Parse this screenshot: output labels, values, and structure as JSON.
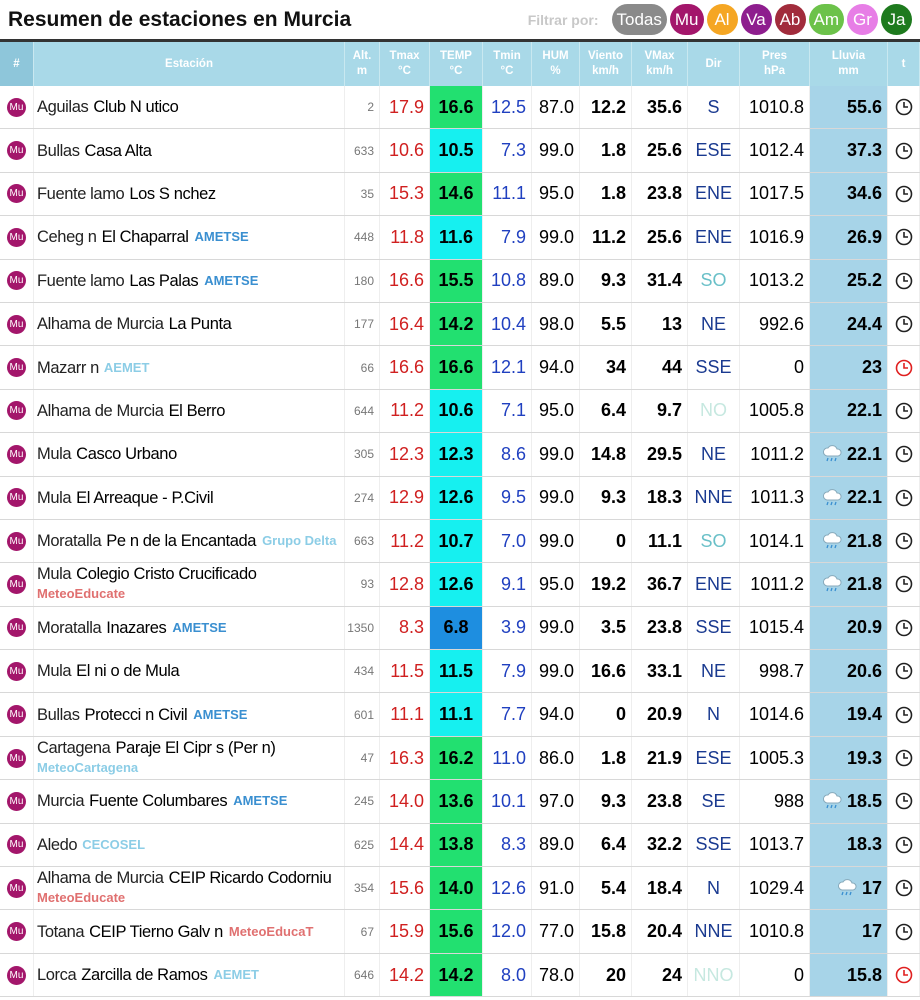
{
  "header": {
    "title": "Resumen de estaciones en Murcia",
    "filter_label": "Filtrar por:",
    "filters": [
      {
        "label": "Todas",
        "color": "#8a8a8a"
      },
      {
        "label": "Mu",
        "color": "#a3166b"
      },
      {
        "label": "Al",
        "color": "#f5a623"
      },
      {
        "label": "Va",
        "color": "#8e1e8e"
      },
      {
        "label": "Ab",
        "color": "#a12c3c"
      },
      {
        "label": "Am",
        "color": "#6cc24a"
      },
      {
        "label": "Gr",
        "color": "#e77ee6"
      },
      {
        "label": "Ja",
        "color": "#1e7a1e"
      }
    ]
  },
  "table": {
    "columns": [
      {
        "label": "#"
      },
      {
        "label": "Estación"
      },
      {
        "label": "Alt.",
        "unit": "m"
      },
      {
        "label": "Tmax",
        "unit": "°C"
      },
      {
        "label": "TEMP",
        "unit": "°C"
      },
      {
        "label": "Tmin",
        "unit": "°C"
      },
      {
        "label": "HUM",
        "unit": "%"
      },
      {
        "label": "Viento",
        "unit": "km/h"
      },
      {
        "label": "VMax",
        "unit": "km/h"
      },
      {
        "label": "Dir"
      },
      {
        "label": "Pres",
        "unit": "hPa"
      },
      {
        "label": "Lluvia",
        "unit": "mm"
      },
      {
        "label": "t"
      }
    ],
    "rows": [
      {
        "region": "Mu",
        "town": "Aguilas",
        "station": "Club N utico",
        "alt": "2",
        "tmax": "17.9",
        "temp": "16.6",
        "temp_color": "#22e070",
        "tmin": "12.5",
        "hum": "87.0",
        "wind": "12.2",
        "vmax": "35.6",
        "dir": "S",
        "pres": "1010.8",
        "rain": "55.6"
      },
      {
        "region": "Mu",
        "town": "Bullas",
        "station": "Casa Alta",
        "alt": "633",
        "tmax": "10.6",
        "temp": "10.5",
        "temp_color": "#16f0f0",
        "tmin": "7.3",
        "hum": "99.0",
        "wind": "1.8",
        "vmax": "25.6",
        "dir": "ESE",
        "pres": "1012.4",
        "rain": "37.3"
      },
      {
        "region": "Mu",
        "town": "Fuente lamo",
        "station": "Los S nchez",
        "alt": "35",
        "tmax": "15.3",
        "temp": "14.6",
        "temp_color": "#22e070",
        "tmin": "11.1",
        "hum": "95.0",
        "wind": "1.8",
        "vmax": "23.8",
        "dir": "ENE",
        "pres": "1017.5",
        "rain": "34.6"
      },
      {
        "region": "Mu",
        "town": "Ceheg n",
        "station": "El Chaparral",
        "source": {
          "name": "AMETSE",
          "color": "#3a8fd0"
        },
        "alt": "448",
        "tmax": "11.8",
        "temp": "11.6",
        "temp_color": "#16f0f0",
        "tmin": "7.9",
        "hum": "99.0",
        "wind": "11.2",
        "vmax": "25.6",
        "dir": "ENE",
        "pres": "1016.9",
        "rain": "26.9"
      },
      {
        "region": "Mu",
        "town": "Fuente lamo",
        "station": "Las Palas",
        "source": {
          "name": "AMETSE",
          "color": "#3a8fd0"
        },
        "alt": "180",
        "tmax": "16.6",
        "temp": "15.5",
        "temp_color": "#22e070",
        "tmin": "10.8",
        "hum": "89.0",
        "wind": "9.3",
        "vmax": "31.4",
        "dir": "SO",
        "dir_color": "#6ac0c8",
        "pres": "1013.2",
        "rain": "25.2"
      },
      {
        "region": "Mu",
        "town": "Alhama de Murcia",
        "station": "La Punta",
        "alt": "177",
        "tmax": "16.4",
        "temp": "14.2",
        "temp_color": "#22e070",
        "tmin": "10.4",
        "hum": "98.0",
        "wind": "5.5",
        "vmax": "13",
        "dir": "NE",
        "pres": "992.6",
        "rain": "24.4"
      },
      {
        "region": "Mu",
        "town": "Mazarr n",
        "source": {
          "name": "AEMET",
          "color": "#8ccde6"
        },
        "alt": "66",
        "tmax": "16.6",
        "temp": "16.6",
        "temp_color": "#22e070",
        "tmin": "12.1",
        "hum": "94.0",
        "wind": "34",
        "vmax": "44",
        "dir": "SSE",
        "pres": "0",
        "rain": "23",
        "stale": true
      },
      {
        "region": "Mu",
        "town": "Alhama de Murcia",
        "station": "El Berro",
        "alt": "644",
        "tmax": "11.2",
        "temp": "10.6",
        "temp_color": "#16f0f0",
        "tmin": "7.1",
        "hum": "95.0",
        "wind": "6.4",
        "vmax": "9.7",
        "dir": "NO",
        "dir_color": "#c6e8e0",
        "pres": "1005.8",
        "rain": "22.1"
      },
      {
        "region": "Mu",
        "town": "Mula",
        "station": "Casco Urbano",
        "alt": "305",
        "tmax": "12.3",
        "temp": "12.3",
        "temp_color": "#16f0f0",
        "tmin": "8.6",
        "hum": "99.0",
        "wind": "14.8",
        "vmax": "29.5",
        "dir": "NE",
        "pres": "1011.2",
        "rain": "22.1",
        "raining": true
      },
      {
        "region": "Mu",
        "town": "Mula",
        "station": "El Arreaque - P.Civil",
        "alt": "274",
        "tmax": "12.9",
        "temp": "12.6",
        "temp_color": "#16f0f0",
        "tmin": "9.5",
        "hum": "99.0",
        "wind": "9.3",
        "vmax": "18.3",
        "dir": "NNE",
        "pres": "1011.3",
        "rain": "22.1",
        "raining": true
      },
      {
        "region": "Mu",
        "town": "Moratalla",
        "station": "Pe n de la Encantada",
        "source": {
          "name": "Grupo Delta",
          "color": "#8ccde6"
        },
        "alt": "663",
        "tmax": "11.2",
        "temp": "10.7",
        "temp_color": "#16f0f0",
        "tmin": "7.0",
        "hum": "99.0",
        "wind": "0",
        "vmax": "11.1",
        "dir": "SO",
        "dir_color": "#6ac0c8",
        "pres": "1014.1",
        "rain": "21.8",
        "raining": true
      },
      {
        "region": "Mu",
        "town": "Mula",
        "station": "Colegio Cristo Crucificado",
        "source": {
          "name": "MeteoEducate",
          "color": "#e07070"
        },
        "alt": "93",
        "tmax": "12.8",
        "temp": "12.6",
        "temp_color": "#16f0f0",
        "tmin": "9.1",
        "hum": "95.0",
        "wind": "19.2",
        "vmax": "36.7",
        "dir": "ENE",
        "pres": "1011.2",
        "rain": "21.8",
        "raining": true
      },
      {
        "region": "Mu",
        "town": "Moratalla",
        "station": "Inazares",
        "source": {
          "name": "AMETSE",
          "color": "#3a8fd0"
        },
        "alt": "1350",
        "tmax": "8.3",
        "temp": "6.8",
        "temp_color": "#1e8ee0",
        "tmin": "3.9",
        "hum": "99.0",
        "wind": "3.5",
        "vmax": "23.8",
        "dir": "SSE",
        "pres": "1015.4",
        "rain": "20.9"
      },
      {
        "region": "Mu",
        "town": "Mula",
        "station": "El ni o de Mula",
        "alt": "434",
        "tmax": "11.5",
        "temp": "11.5",
        "temp_color": "#16f0f0",
        "tmin": "7.9",
        "hum": "99.0",
        "wind": "16.6",
        "vmax": "33.1",
        "dir": "NE",
        "pres": "998.7",
        "rain": "20.6"
      },
      {
        "region": "Mu",
        "town": "Bullas",
        "station": "Protecci n Civil",
        "source": {
          "name": "AMETSE",
          "color": "#3a8fd0"
        },
        "alt": "601",
        "tmax": "11.1",
        "temp": "11.1",
        "temp_color": "#16f0f0",
        "tmin": "7.7",
        "hum": "94.0",
        "wind": "0",
        "vmax": "20.9",
        "dir": "N",
        "pres": "1014.6",
        "rain": "19.4"
      },
      {
        "region": "Mu",
        "town": "Cartagena",
        "station": "Paraje El Cipr s (Per n)",
        "source": {
          "name": "MeteoCartagena",
          "color": "#8ccde6"
        },
        "alt": "47",
        "tmax": "16.3",
        "temp": "16.2",
        "temp_color": "#22e070",
        "tmin": "11.0",
        "hum": "86.0",
        "wind": "1.8",
        "vmax": "21.9",
        "dir": "ESE",
        "pres": "1005.3",
        "rain": "19.3"
      },
      {
        "region": "Mu",
        "town": "Murcia",
        "station": "Fuente Columbares",
        "source": {
          "name": "AMETSE",
          "color": "#3a8fd0"
        },
        "alt": "245",
        "tmax": "14.0",
        "temp": "13.6",
        "temp_color": "#22e070",
        "tmin": "10.1",
        "hum": "97.0",
        "wind": "9.3",
        "vmax": "23.8",
        "dir": "SE",
        "pres": "988",
        "rain": "18.5",
        "raining": true
      },
      {
        "region": "Mu",
        "town": "Aledo",
        "source": {
          "name": "CECOSEL",
          "color": "#8ccde6"
        },
        "alt": "625",
        "tmax": "14.4",
        "temp": "13.8",
        "temp_color": "#22e070",
        "tmin": "8.3",
        "hum": "89.0",
        "wind": "6.4",
        "vmax": "32.2",
        "dir": "SSE",
        "pres": "1013.7",
        "rain": "18.3"
      },
      {
        "region": "Mu",
        "town": "Alhama de Murcia",
        "station": "CEIP Ricardo Codorniu",
        "source": {
          "name": "MeteoEducate",
          "color": "#e07070"
        },
        "alt": "354",
        "tmax": "15.6",
        "temp": "14.0",
        "temp_color": "#22e070",
        "tmin": "12.6",
        "hum": "91.0",
        "wind": "5.4",
        "vmax": "18.4",
        "dir": "N",
        "pres": "1029.4",
        "rain": "17",
        "raining": true
      },
      {
        "region": "Mu",
        "town": "Totana",
        "station": "CEIP Tierno Galv n",
        "source": {
          "name": "MeteoEducaT",
          "color": "#e07070"
        },
        "alt": "67",
        "tmax": "15.9",
        "temp": "15.6",
        "temp_color": "#22e070",
        "tmin": "12.0",
        "hum": "77.0",
        "wind": "15.8",
        "vmax": "20.4",
        "dir": "NNE",
        "pres": "1010.8",
        "rain": "17"
      },
      {
        "region": "Mu",
        "town": "Lorca",
        "station": "Zarcilla de Ramos",
        "source": {
          "name": "AEMET",
          "color": "#8ccde6"
        },
        "alt": "646",
        "tmax": "14.2",
        "temp": "14.2",
        "temp_color": "#22e070",
        "tmin": "8.0",
        "hum": "78.0",
        "wind": "20",
        "vmax": "24",
        "dir": "NNO",
        "dir_color": "#c6e8e0",
        "pres": "0",
        "rain": "15.8",
        "stale": true
      }
    ]
  }
}
